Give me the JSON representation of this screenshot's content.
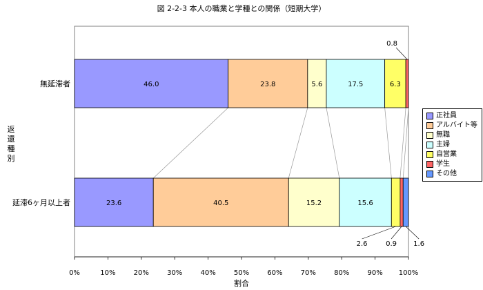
{
  "chart_data": {
    "type": "bar",
    "orientation": "horizontal",
    "stacked": "percent",
    "title": "図 2-2-3 本人の職業と学種との関係（短期大学）",
    "xlabel": "割合",
    "ylabel": "返還種別",
    "xlim": [
      0,
      100
    ],
    "x_ticks": [
      "0%",
      "10%",
      "20%",
      "30%",
      "40%",
      "50%",
      "60%",
      "70%",
      "80%",
      "90%",
      "100%"
    ],
    "categories": [
      "無延滞者",
      "延滞6ヶ月以上者"
    ],
    "series": [
      {
        "name": "正社員",
        "color": "#9999ff",
        "values": [
          46.0,
          23.6
        ],
        "labels": [
          "46.0",
          "23.6"
        ]
      },
      {
        "name": "アルバイト等",
        "color": "#ffcc99",
        "values": [
          23.8,
          40.5
        ],
        "labels": [
          "23.8",
          "40.5"
        ]
      },
      {
        "name": "無職",
        "color": "#ffffcc",
        "values": [
          5.6,
          15.2
        ],
        "labels": [
          "5.6",
          "15.2"
        ]
      },
      {
        "name": "主婦",
        "color": "#ccffff",
        "values": [
          17.5,
          15.6
        ],
        "labels": [
          "17.5",
          "15.6"
        ]
      },
      {
        "name": "自営業",
        "color": "#ffff66",
        "values": [
          6.3,
          2.6
        ],
        "labels": [
          "6.3",
          "2.6"
        ]
      },
      {
        "name": "学生",
        "color": "#ff6666",
        "values": [
          0.8,
          0.9
        ],
        "labels": [
          "0.8",
          "0.9"
        ]
      },
      {
        "name": "その他",
        "color": "#6699ff",
        "values": [
          0.0,
          1.6
        ],
        "labels": [
          "",
          "1.6"
        ]
      }
    ],
    "legend_position": "right",
    "grid": false,
    "series_lines": true
  }
}
